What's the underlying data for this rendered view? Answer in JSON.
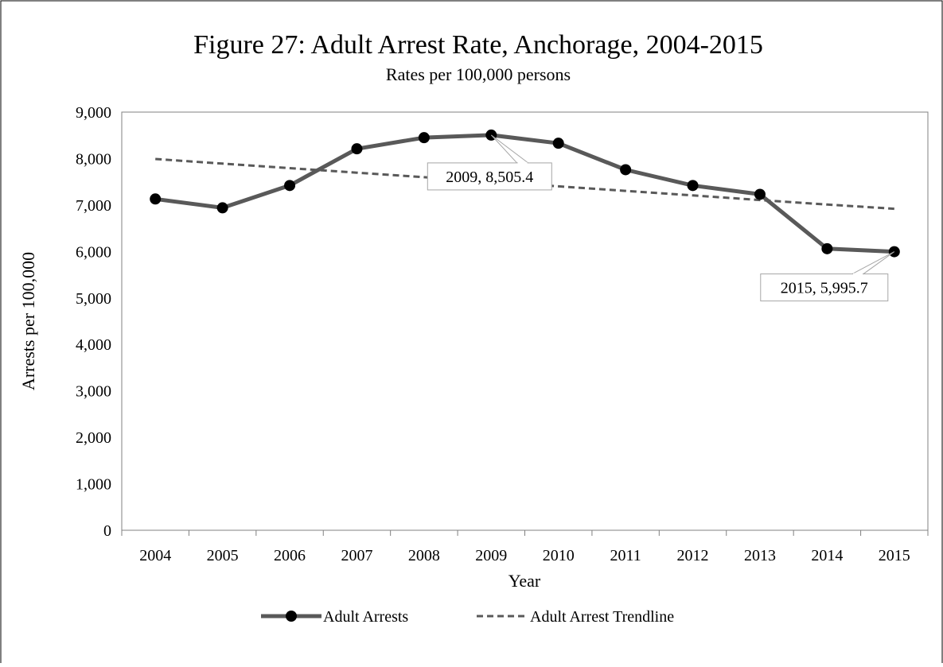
{
  "chart_data": {
    "type": "line",
    "title": "Figure 27: Adult Arrest Rate, Anchorage, 2004-2015",
    "subtitle": "Rates per 100,000 persons",
    "xlabel": "Year",
    "ylabel": "Arrests per 100,000",
    "categories": [
      "2004",
      "2005",
      "2006",
      "2007",
      "2008",
      "2009",
      "2010",
      "2011",
      "2012",
      "2013",
      "2014",
      "2015"
    ],
    "yticks": [
      "0",
      "1,000",
      "2,000",
      "3,000",
      "4,000",
      "5,000",
      "6,000",
      "7,000",
      "8,000",
      "9,000"
    ],
    "ylim": [
      0,
      9000
    ],
    "grid": false,
    "legend_position": "bottom",
    "series": [
      {
        "name": "Adult Arrests",
        "style": "solid-with-markers",
        "color": "#595959",
        "marker_color": "#000000",
        "values": [
          7130,
          6940,
          7420,
          8210,
          8450,
          8505.4,
          8330,
          7760,
          7420,
          7230,
          6060,
          5995.7
        ]
      },
      {
        "name": "Adult Arrest Trendline",
        "style": "dashed",
        "color": "#595959",
        "values": [
          7990,
          7892,
          7794,
          7696,
          7598,
          7500,
          7402,
          7304,
          7206,
          7108,
          7010,
          6920
        ]
      }
    ],
    "annotations": [
      {
        "text": "2009, 8,505.4",
        "category": "2009",
        "value": 8505.4
      },
      {
        "text": "2015, 5,995.7",
        "category": "2015",
        "value": 5995.7
      }
    ]
  }
}
